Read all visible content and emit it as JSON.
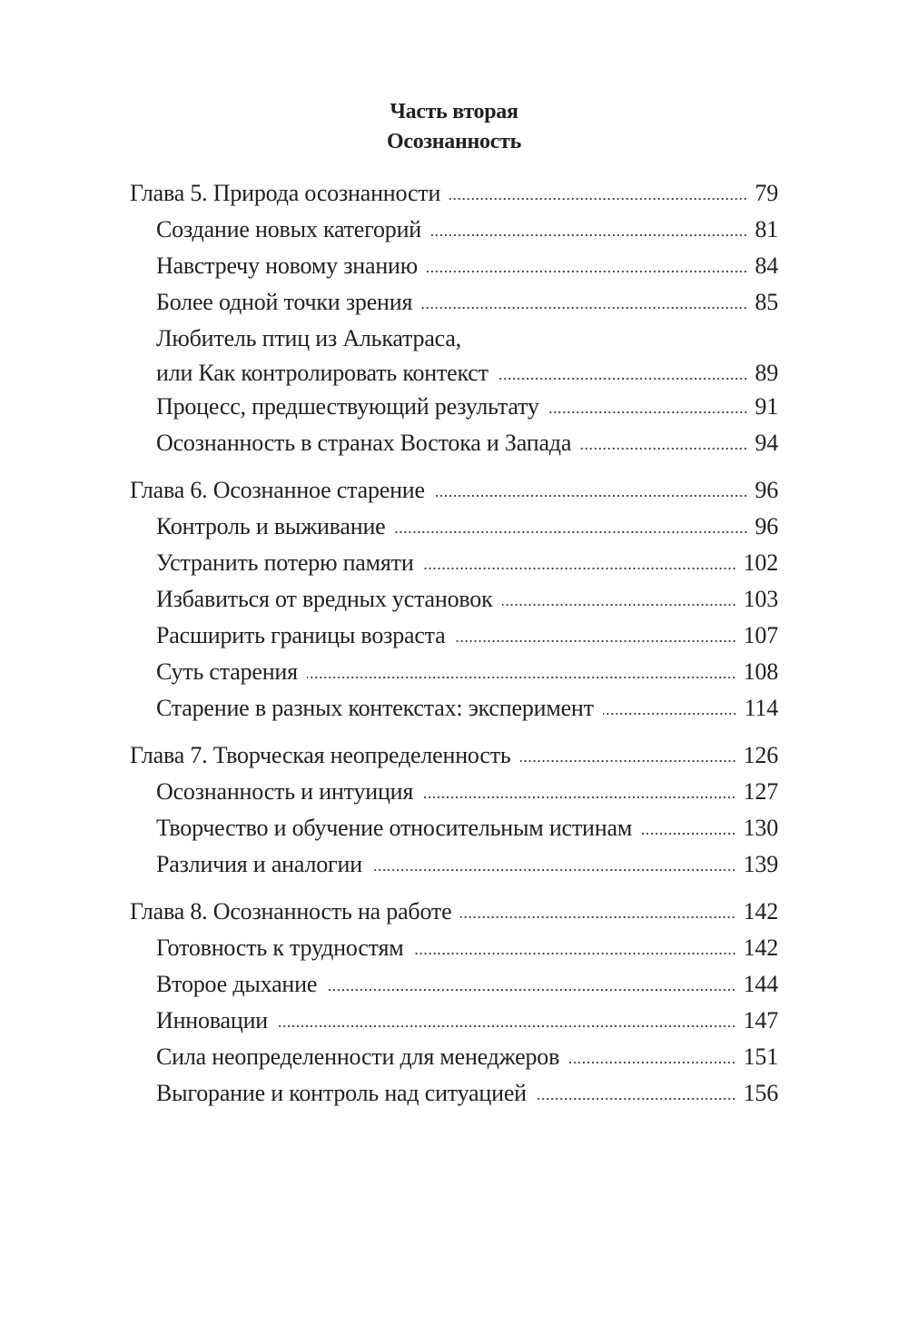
{
  "part": {
    "label": "Часть вторая",
    "title": "Осознанность"
  },
  "chapters": [
    {
      "title": "Глава 5. Природа осознанности",
      "page": "79",
      "sections": [
        {
          "title": [
            "Создание новых категорий"
          ],
          "page": "81"
        },
        {
          "title": [
            "Навстречу новому знанию"
          ],
          "page": "84"
        },
        {
          "title": [
            "Более одной точки зрения"
          ],
          "page": "85"
        },
        {
          "title": [
            "Любитель птиц из Алькатраса,",
            "или Как контролировать контекст"
          ],
          "page": "89"
        },
        {
          "title": [
            "Процесс, предшествующий результату"
          ],
          "page": "91"
        },
        {
          "title": [
            "Осознанность в странах Востока и Запада"
          ],
          "page": "94"
        }
      ]
    },
    {
      "title": "Глава 6. Осознанное старение",
      "page": "96",
      "sections": [
        {
          "title": [
            "Контроль и выживание"
          ],
          "page": "96"
        },
        {
          "title": [
            "Устранить потерю памяти"
          ],
          "page": "102"
        },
        {
          "title": [
            "Избавиться от вредных установок"
          ],
          "page": "103"
        },
        {
          "title": [
            "Расширить границы возраста"
          ],
          "page": "107"
        },
        {
          "title": [
            "Суть старения"
          ],
          "page": "108"
        },
        {
          "title": [
            "Старение в разных контекстах: эксперимент"
          ],
          "page": "114"
        }
      ]
    },
    {
      "title": "Глава 7. Творческая неопределенность",
      "page": "126",
      "sections": [
        {
          "title": [
            "Осознанность и интуиция"
          ],
          "page": "127"
        },
        {
          "title": [
            "Творчество и обучение относительным истинам"
          ],
          "page": "130"
        },
        {
          "title": [
            "Различия и аналогии"
          ],
          "page": "139"
        }
      ]
    },
    {
      "title": "Глава 8. Осознанность на работе",
      "page": "142",
      "sections": [
        {
          "title": [
            "Готовность к трудностям"
          ],
          "page": "142"
        },
        {
          "title": [
            "Второе дыхание"
          ],
          "page": "144"
        },
        {
          "title": [
            "Инновации"
          ],
          "page": "147"
        },
        {
          "title": [
            "Сила неопределенности для менеджеров"
          ],
          "page": "151"
        },
        {
          "title": [
            "Выгорание и контроль над ситуацией"
          ],
          "page": "156"
        }
      ]
    }
  ]
}
